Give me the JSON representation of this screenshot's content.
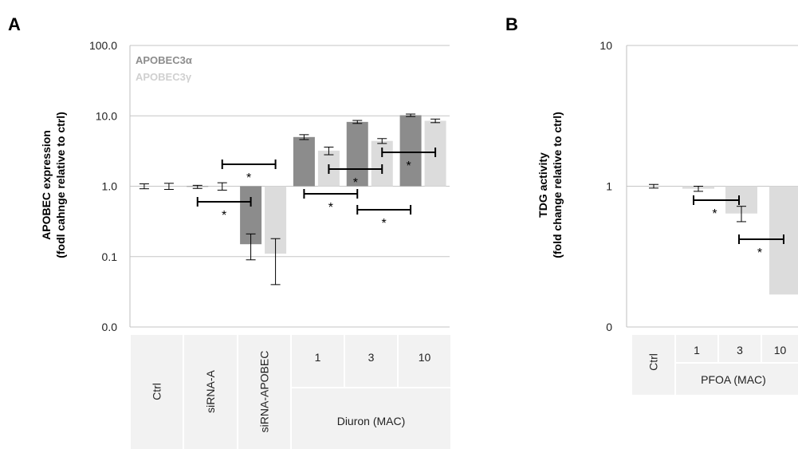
{
  "chart_data": [
    {
      "panel_label": "A",
      "type": "bar",
      "y_scale": "log",
      "ylim": [
        0.01,
        100
      ],
      "yticks": [
        {
          "value": 100,
          "label": "100.0"
        },
        {
          "value": 10,
          "label": "10.0"
        },
        {
          "value": 1,
          "label": "1.0"
        },
        {
          "value": 0.1,
          "label": "0.1"
        },
        {
          "value": 0.01,
          "label": "0.0"
        }
      ],
      "ylabel_lines": [
        "APOBEC expression",
        "(fodl cahnge relative to ctrl)"
      ],
      "grid": true,
      "legend_position": "top-left",
      "categories": [
        "Ctrl",
        "siRNA-A",
        "siRNA-APOBEC",
        "1",
        "3",
        "10"
      ],
      "category_group": {
        "label": "Diuron (MAC)",
        "members": [
          "1",
          "3",
          "10"
        ]
      },
      "series": [
        {
          "name": "APOBEC3α",
          "color": "#8c8c8c",
          "values": [
            1.0,
            0.98,
            0.15,
            5.0,
            8.2,
            10.2
          ],
          "errors": [
            0.08,
            0.05,
            0.06,
            0.4,
            0.4,
            0.4
          ]
        },
        {
          "name": "APOBEC3γ",
          "color": "#dcdcdc",
          "values": [
            1.0,
            1.0,
            0.11,
            3.2,
            4.4,
            8.5
          ],
          "errors": [
            0.1,
            0.12,
            0.07,
            0.4,
            0.35,
            0.5
          ]
        }
      ],
      "annotations": [
        {
          "text": "*",
          "from": "siRNA-A",
          "to": "siRNA-APOBEC",
          "series": "APOBEC3α"
        },
        {
          "text": "*",
          "from": "siRNA-A",
          "to": "siRNA-APOBEC",
          "series": "APOBEC3γ"
        },
        {
          "text": "*",
          "from": "1",
          "to": "3",
          "series": "APOBEC3α"
        },
        {
          "text": "*",
          "from": "1",
          "to": "3",
          "series": "APOBEC3γ"
        },
        {
          "text": "*",
          "from": "3",
          "to": "10",
          "series": "APOBEC3α"
        },
        {
          "text": "*",
          "from": "3",
          "to": "10",
          "series": "APOBEC3γ"
        }
      ]
    },
    {
      "panel_label": "B",
      "type": "bar",
      "y_scale": "log",
      "ylim": [
        0.1,
        10
      ],
      "yticks": [
        {
          "value": 10,
          "label": "10"
        },
        {
          "value": 1,
          "label": "1"
        },
        {
          "value": 0.1,
          "label": "0"
        }
      ],
      "ylabel_lines": [
        "TDG activity",
        "(fold change relative to ctrl)"
      ],
      "grid": true,
      "categories": [
        "Ctrl",
        "1",
        "3",
        "10"
      ],
      "category_group": {
        "label": "PFOA (MAC)",
        "members": [
          "1",
          "3",
          "10"
        ]
      },
      "series": [
        {
          "color": "#dcdcdc",
          "values": [
            1.0,
            0.96,
            0.64,
            0.17
          ],
          "errors": [
            0.03,
            0.04,
            0.08,
            0
          ]
        }
      ],
      "annotations": [
        {
          "text": "*",
          "from": "1",
          "to": "3"
        },
        {
          "text": "*",
          "from": "3",
          "to": "10"
        }
      ]
    }
  ]
}
